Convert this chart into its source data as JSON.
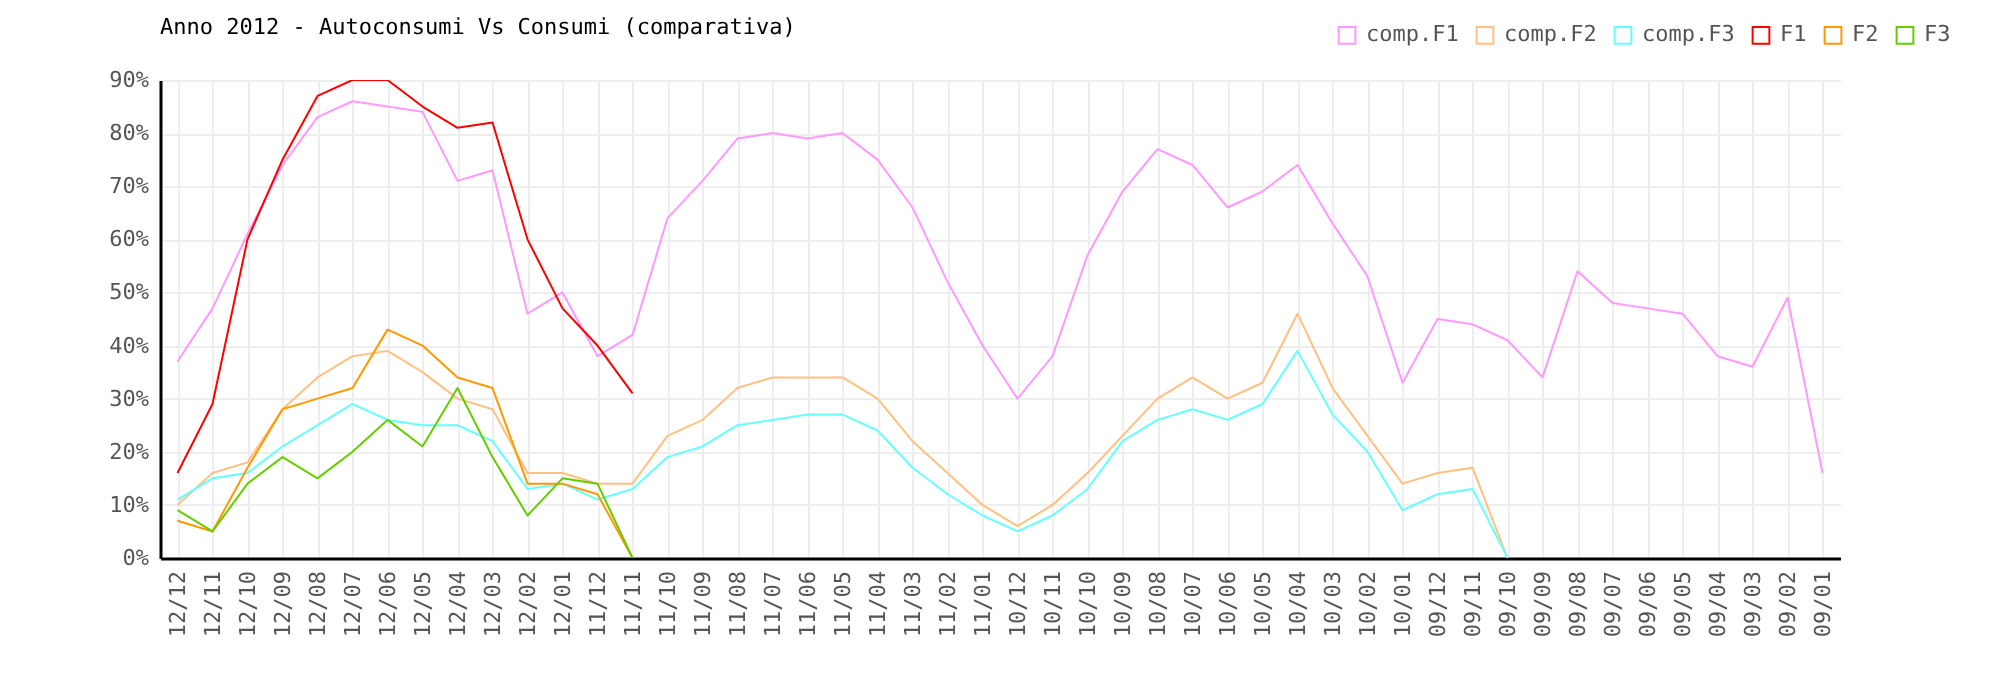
{
  "chart_data": {
    "type": "line",
    "title": "Anno 2012 - Autoconsumi Vs Consumi (comparativa)",
    "categories": [
      "12/12",
      "12/11",
      "12/10",
      "12/09",
      "12/08",
      "12/07",
      "12/06",
      "12/05",
      "12/04",
      "12/03",
      "12/02",
      "12/01",
      "11/12",
      "11/11",
      "11/10",
      "11/09",
      "11/08",
      "11/07",
      "11/06",
      "11/05",
      "11/04",
      "11/03",
      "11/02",
      "11/01",
      "10/12",
      "10/11",
      "10/10",
      "10/09",
      "10/08",
      "10/07",
      "10/06",
      "10/05",
      "10/04",
      "10/03",
      "10/02",
      "10/01",
      "09/12",
      "09/11",
      "09/10",
      "09/09",
      "09/08",
      "09/07",
      "09/06",
      "09/05",
      "09/04",
      "09/03",
      "09/02",
      "09/01"
    ],
    "series": [
      {
        "name": "comp.F1",
        "color": "#ff99ff",
        "values": [
          37,
          47,
          61,
          74,
          83,
          86,
          85,
          84,
          71,
          73,
          46,
          50,
          38,
          42,
          64,
          71,
          79,
          80,
          79,
          80,
          75,
          66,
          52,
          40,
          30,
          38,
          57,
          69,
          77,
          74,
          66,
          69,
          74,
          63,
          53,
          33,
          45,
          44,
          41,
          34,
          54,
          48,
          47,
          46,
          38,
          36,
          49,
          16
        ]
      },
      {
        "name": "comp.F2",
        "color": "#ffc080",
        "values": [
          10,
          16,
          18,
          28,
          34,
          38,
          39,
          35,
          30,
          28,
          16,
          16,
          14,
          14,
          23,
          26,
          32,
          34,
          34,
          34,
          30,
          22,
          16,
          10,
          6,
          10,
          16,
          23,
          30,
          34,
          30,
          33,
          46,
          32,
          23,
          14,
          16,
          17,
          0,
          null,
          null,
          null,
          null,
          null,
          null,
          null,
          null,
          null
        ]
      },
      {
        "name": "comp.F3",
        "color": "#66ffff",
        "values": [
          11,
          15,
          16,
          21,
          25,
          29,
          26,
          25,
          25,
          22,
          13,
          14,
          11,
          13,
          19,
          21,
          25,
          26,
          27,
          27,
          24,
          17,
          12,
          8,
          5,
          8,
          13,
          22,
          26,
          28,
          26,
          29,
          39,
          27,
          20,
          9,
          12,
          13,
          0,
          null,
          null,
          null,
          null,
          null,
          null,
          null,
          null,
          null
        ]
      },
      {
        "name": "F1",
        "color": "#ff0000",
        "values": [
          16,
          29,
          60,
          75,
          87,
          90,
          90,
          85,
          81,
          82,
          60,
          47,
          40,
          31,
          null,
          null,
          null,
          null,
          null,
          null,
          null,
          null,
          null,
          null,
          null,
          null,
          null,
          null,
          null,
          null,
          null,
          null,
          null,
          null,
          null,
          null,
          null,
          null,
          null,
          null,
          null,
          null,
          null,
          null,
          null,
          null,
          null,
          null
        ]
      },
      {
        "name": "F2",
        "color": "#ff9900",
        "values": [
          7,
          5,
          17,
          28,
          30,
          32,
          43,
          40,
          34,
          32,
          14,
          14,
          12,
          0,
          null,
          null,
          null,
          null,
          null,
          null,
          null,
          null,
          null,
          null,
          null,
          null,
          null,
          null,
          null,
          null,
          null,
          null,
          null,
          null,
          null,
          null,
          null,
          null,
          null,
          null,
          null,
          null,
          null,
          null,
          null,
          null,
          null,
          null
        ]
      },
      {
        "name": "F3",
        "color": "#66cc00",
        "values": [
          9,
          5,
          14,
          19,
          15,
          20,
          26,
          21,
          32,
          19,
          8,
          15,
          14,
          0,
          null,
          null,
          null,
          null,
          null,
          null,
          null,
          null,
          null,
          null,
          null,
          null,
          null,
          null,
          null,
          null,
          null,
          null,
          null,
          null,
          null,
          null,
          null,
          null,
          null,
          null,
          null,
          null,
          null,
          null,
          null,
          null,
          null,
          null
        ]
      }
    ],
    "ylim": [
      0,
      90
    ],
    "yticks": [
      {
        "value": 0,
        "label": "0%"
      },
      {
        "value": 10,
        "label": "10%"
      },
      {
        "value": 20,
        "label": "20%"
      },
      {
        "value": 30,
        "label": "30%"
      },
      {
        "value": 40,
        "label": "40%"
      },
      {
        "value": 50,
        "label": "50%"
      },
      {
        "value": 60,
        "label": "60%"
      },
      {
        "value": 70,
        "label": "70%"
      },
      {
        "value": 80,
        "label": "80%"
      },
      {
        "value": 90,
        "label": "90%"
      }
    ],
    "grid": true,
    "legend": "top right",
    "marker": "none",
    "line_style": "solid"
  }
}
